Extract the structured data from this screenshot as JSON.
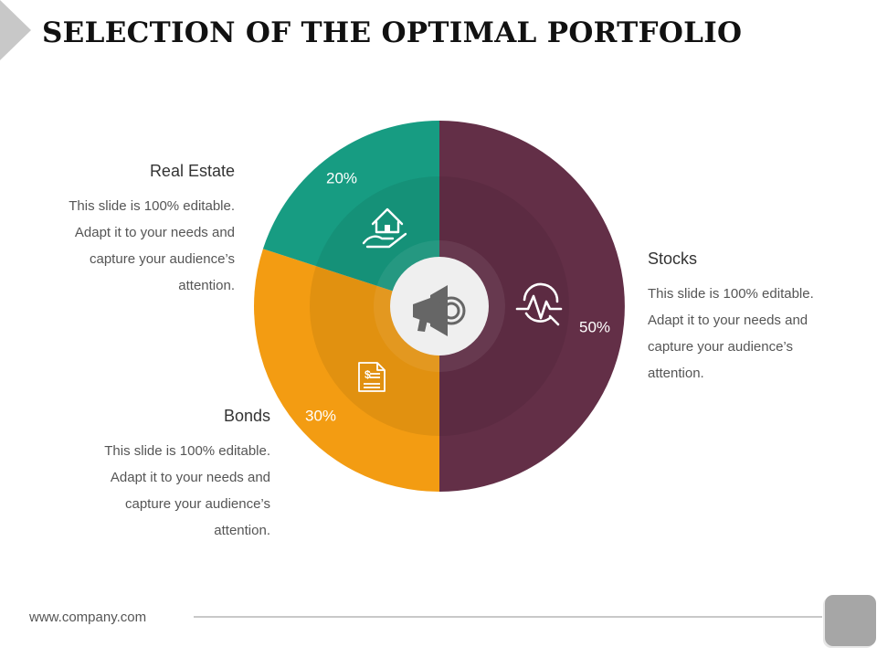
{
  "slide": {
    "title": "SELECTION OF THE OPTIMAL PORTFOLIO",
    "footer_url": "www.company.com"
  },
  "blocks": {
    "real_estate": {
      "title": "Real Estate",
      "lines": [
        "This slide is 100% editable.",
        "Adapt it to your needs and",
        "capture your audience’s",
        "attention."
      ]
    },
    "bonds": {
      "title": "Bonds",
      "lines": [
        "This slide is 100% editable.",
        "Adapt it to your needs and",
        "capture your audience’s",
        "attention."
      ]
    },
    "stocks": {
      "title": "Stocks",
      "lines": [
        "This slide is 100% editable.",
        "Adapt it to your needs and",
        "capture your audience’s",
        "attention."
      ]
    }
  },
  "chart_data": {
    "type": "pie",
    "slices": [
      {
        "label": "Stocks",
        "value": 50,
        "value_label": "50%",
        "color": "#632f47",
        "icon": "stock-analysis-icon"
      },
      {
        "label": "Bonds",
        "value": 30,
        "value_label": "30%",
        "color": "#f39c12",
        "icon": "dollar-document-icon"
      },
      {
        "label": "Real Estate",
        "value": 20,
        "value_label": "20%",
        "color": "#179c82",
        "icon": "house-in-hand-icon"
      }
    ],
    "center_icon": "megaphone-icon",
    "legend": "none"
  }
}
